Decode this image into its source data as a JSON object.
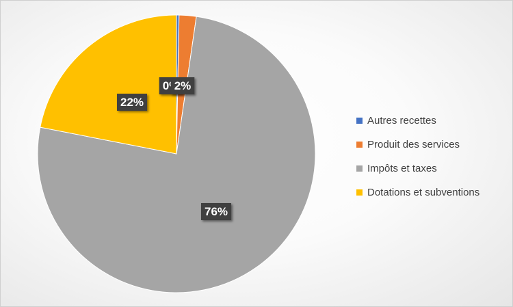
{
  "chart_data": {
    "type": "pie",
    "title": "",
    "categories": [
      "Autres recettes",
      "Produit des services",
      "Impôts et taxes",
      "Dotations et subventions"
    ],
    "values": [
      0.3,
      2,
      76,
      22
    ],
    "data_labels": [
      "0%",
      "2%",
      "76%",
      "22%"
    ],
    "colors": [
      "#4472C4",
      "#ED7D31",
      "#A5A5A5",
      "#FFC000"
    ],
    "legend_position": "right",
    "legend": {
      "items": [
        {
          "label": "Autres recettes",
          "color": "#4472C4"
        },
        {
          "label": "Produit des services",
          "color": "#ED7D31"
        },
        {
          "label": "Impôts et taxes",
          "color": "#A5A5A5"
        },
        {
          "label": "Dotations et subventions",
          "color": "#FFC000"
        }
      ]
    }
  }
}
